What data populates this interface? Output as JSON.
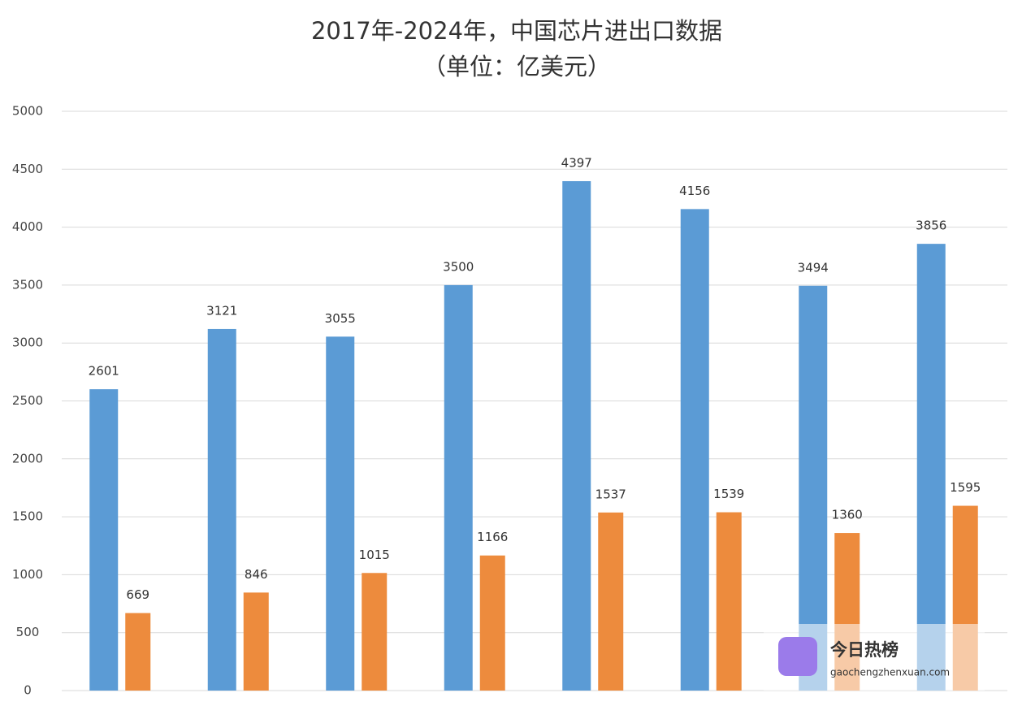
{
  "chart_data": {
    "type": "bar",
    "title": "2017年-2024年，中国芯片进出口数据",
    "subtitle": "（单位：亿美元）",
    "categories": [
      null,
      null,
      null,
      null,
      null,
      null,
      null,
      null
    ],
    "series": [
      {
        "color": "#5b9bd5",
        "values": [
          2601,
          3121,
          3055,
          3500,
          4397,
          4156,
          3494,
          3856
        ]
      },
      {
        "color": "#ed8b3d",
        "values": [
          669,
          846,
          1015,
          1166,
          1537,
          1539,
          1360,
          1595
        ]
      }
    ],
    "ylim": [
      0,
      5000
    ],
    "yticks": [
      0,
      500,
      1000,
      1500,
      2000,
      2500,
      3000,
      3500,
      4000,
      4500,
      5000
    ],
    "grid": true
  },
  "watermark": {
    "name": "今日热榜",
    "url": "gaochengzhenxuan.com"
  }
}
